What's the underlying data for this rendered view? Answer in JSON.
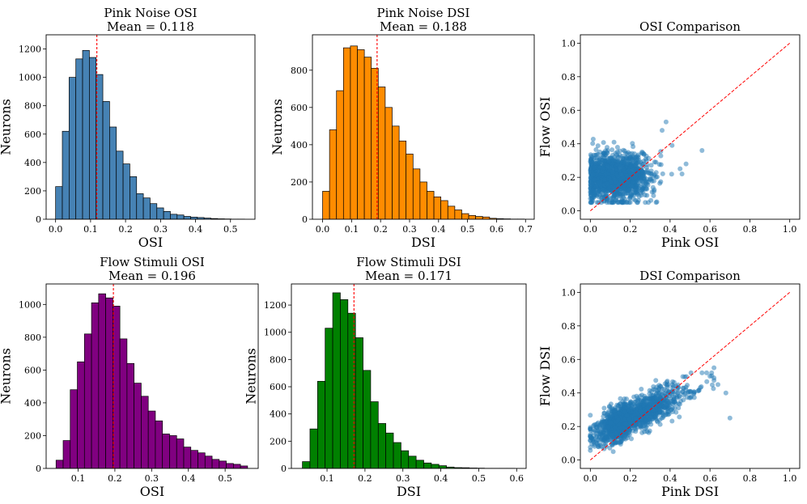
{
  "figure": {
    "title": ""
  },
  "chart_data": [
    {
      "id": "pink-osi",
      "type": "bar",
      "title": "Pink Noise OSI",
      "subtitle": "Mean = 0.118",
      "xlabel": "OSI",
      "ylabel": "Neurons",
      "color": "#4682b4",
      "edgecolor": "#000000",
      "bin_start": 0.0,
      "bin_width": 0.0193,
      "values": [
        230,
        620,
        1000,
        1130,
        1190,
        1140,
        1020,
        830,
        650,
        480,
        390,
        300,
        180,
        150,
        110,
        80,
        55,
        35,
        30,
        20,
        15,
        12,
        8,
        5,
        3,
        2,
        1,
        1
      ],
      "mean": 0.118,
      "mean_line_color": "#ff0000",
      "xlim": [
        -0.027,
        0.57
      ],
      "ylim": [
        0,
        1300
      ],
      "xticks": [
        0.0,
        0.1,
        0.2,
        0.3,
        0.4,
        0.5
      ],
      "xtick_labels": [
        "0.0",
        "0.1",
        "0.2",
        "0.3",
        "0.4",
        "0.5"
      ],
      "yticks": [
        0,
        200,
        400,
        600,
        800,
        1000,
        1200
      ],
      "ytick_labels": [
        "0",
        "200",
        "400",
        "600",
        "800",
        "1000",
        "1200"
      ]
    },
    {
      "id": "pink-dsi",
      "type": "bar",
      "title": "Pink Noise DSI",
      "subtitle": "Mean = 0.188",
      "xlabel": "DSI",
      "ylabel": "Neurons",
      "color": "#ff8c00",
      "edgecolor": "#000000",
      "bin_start": 0.0,
      "bin_width": 0.024,
      "values": [
        150,
        480,
        690,
        920,
        930,
        910,
        870,
        810,
        710,
        600,
        500,
        420,
        350,
        270,
        200,
        150,
        120,
        100,
        70,
        50,
        30,
        20,
        15,
        12,
        5,
        3,
        2,
        1,
        1
      ],
      "mean": 0.188,
      "mean_line_color": "#ff0000",
      "xlim": [
        -0.035,
        0.73
      ],
      "ylim": [
        0,
        990
      ],
      "xticks": [
        0.0,
        0.1,
        0.2,
        0.3,
        0.4,
        0.5,
        0.6,
        0.7
      ],
      "xtick_labels": [
        "0.0",
        "0.1",
        "0.2",
        "0.3",
        "0.4",
        "0.5",
        "0.6",
        "0.7"
      ],
      "yticks": [
        0,
        200,
        400,
        600,
        800
      ],
      "ytick_labels": [
        "0",
        "200",
        "400",
        "600",
        "800"
      ]
    },
    {
      "id": "osi-comparison",
      "type": "scatter",
      "title": "OSI Comparison",
      "subtitle": "",
      "xlabel": "Pink OSI",
      "ylabel": "Flow OSI",
      "color": "#1f77b4",
      "alpha": 0.5,
      "cloud": {
        "x_range": [
          0.0,
          0.45
        ],
        "y_range": [
          0.05,
          0.5
        ],
        "x_center": 0.12,
        "y_center": 0.2,
        "n_points": 1400,
        "trend": "none"
      },
      "outliers": [
        [
          0.56,
          0.36
        ],
        [
          0.48,
          0.28
        ],
        [
          0.46,
          0.22
        ],
        [
          0.38,
          0.53
        ],
        [
          0.36,
          0.48
        ],
        [
          0.41,
          0.39
        ]
      ],
      "identity_line": {
        "from": [
          0,
          0
        ],
        "to": [
          1,
          1
        ],
        "color": "#ff0000"
      },
      "xlim": [
        -0.05,
        1.05
      ],
      "ylim": [
        -0.05,
        1.05
      ],
      "xticks": [
        0.0,
        0.2,
        0.4,
        0.6,
        0.8,
        1.0
      ],
      "xtick_labels": [
        "0.0",
        "0.2",
        "0.4",
        "0.6",
        "0.8",
        "1.0"
      ],
      "yticks": [
        0.0,
        0.2,
        0.4,
        0.6,
        0.8,
        1.0
      ],
      "ytick_labels": [
        "0.0",
        "0.2",
        "0.4",
        "0.6",
        "0.8",
        "1.0"
      ]
    },
    {
      "id": "flow-osi",
      "type": "bar",
      "title": "Flow Stimuli OSI",
      "subtitle": "Mean = 0.196",
      "xlabel": "OSI",
      "ylabel": "Neurons",
      "color": "#800080",
      "edgecolor": "#000000",
      "bin_start": 0.04,
      "bin_width": 0.0193,
      "values": [
        50,
        170,
        480,
        650,
        820,
        1010,
        1065,
        1040,
        990,
        790,
        640,
        520,
        440,
        350,
        290,
        210,
        200,
        180,
        130,
        110,
        95,
        75,
        55,
        45,
        30,
        25,
        15
      ],
      "mean": 0.196,
      "mean_line_color": "#ff0000",
      "xlim": [
        0.013,
        0.59
      ],
      "ylim": [
        0,
        1125
      ],
      "xticks": [
        0.1,
        0.2,
        0.3,
        0.4,
        0.5
      ],
      "xtick_labels": [
        "0.1",
        "0.2",
        "0.3",
        "0.4",
        "0.5"
      ],
      "yticks": [
        0,
        200,
        400,
        600,
        800,
        1000
      ],
      "ytick_labels": [
        "0",
        "200",
        "400",
        "600",
        "800",
        "1000"
      ]
    },
    {
      "id": "flow-dsi",
      "type": "bar",
      "title": "Flow Stimuli DSI",
      "subtitle": "Mean = 0.171",
      "xlabel": "DSI",
      "ylabel": "Neurons",
      "color": "#008000",
      "edgecolor": "#000000",
      "bin_start": 0.035,
      "bin_width": 0.02,
      "values": [
        50,
        290,
        640,
        1030,
        1290,
        1240,
        1140,
        960,
        720,
        490,
        330,
        260,
        190,
        130,
        90,
        60,
        40,
        30,
        20,
        10,
        6,
        5,
        3,
        2,
        1,
        1,
        1,
        1
      ],
      "mean": 0.171,
      "mean_line_color": "#ff0000",
      "xlim": [
        0.006,
        0.625
      ],
      "ylim": [
        0,
        1355
      ],
      "xticks": [
        0.1,
        0.2,
        0.3,
        0.4,
        0.5,
        0.6
      ],
      "xtick_labels": [
        "0.1",
        "0.2",
        "0.3",
        "0.4",
        "0.5",
        "0.6"
      ],
      "yticks": [
        0,
        200,
        400,
        600,
        800,
        1000,
        1200
      ],
      "ytick_labels": [
        "0",
        "200",
        "400",
        "600",
        "800",
        "1000",
        "1200"
      ]
    },
    {
      "id": "dsi-comparison",
      "type": "scatter",
      "title": "DSI Comparison",
      "subtitle": "",
      "xlabel": "Pink DSI",
      "ylabel": "Flow DSI",
      "color": "#1f77b4",
      "alpha": 0.5,
      "cloud": {
        "x_range": [
          0.0,
          0.62
        ],
        "y_range": [
          0.05,
          0.52
        ],
        "x_center": 0.18,
        "y_center": 0.2,
        "n_points": 1500,
        "trend": "positive"
      },
      "outliers": [
        [
          0.7,
          0.25
        ],
        [
          0.68,
          0.4
        ],
        [
          0.62,
          0.55
        ],
        [
          0.56,
          0.52
        ],
        [
          0.6,
          0.5
        ],
        [
          0.64,
          0.45
        ]
      ],
      "identity_line": {
        "from": [
          0,
          0
        ],
        "to": [
          1,
          1
        ],
        "color": "#ff0000"
      },
      "xlim": [
        -0.05,
        1.05
      ],
      "ylim": [
        -0.05,
        1.05
      ],
      "xticks": [
        0.0,
        0.2,
        0.4,
        0.6,
        0.8,
        1.0
      ],
      "xtick_labels": [
        "0.0",
        "0.2",
        "0.4",
        "0.6",
        "0.8",
        "1.0"
      ],
      "yticks": [
        0.0,
        0.2,
        0.4,
        0.6,
        0.8,
        1.0
      ],
      "ytick_labels": [
        "0.0",
        "0.2",
        "0.4",
        "0.6",
        "0.8",
        "1.0"
      ]
    }
  ]
}
